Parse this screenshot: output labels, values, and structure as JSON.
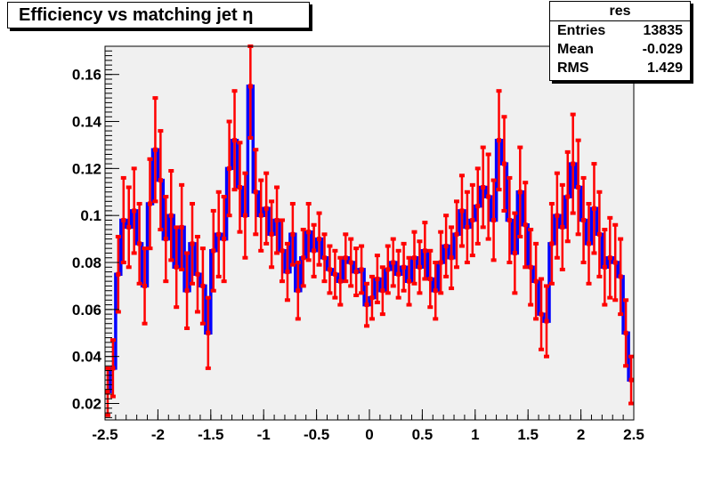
{
  "title": "Efficiency vs matching jet η",
  "stats": {
    "name": "res",
    "rows": [
      {
        "label": "Entries",
        "value": "13835"
      },
      {
        "label": "Mean",
        "value": "-0.029"
      },
      {
        "label": "RMS",
        "value": "1.429"
      }
    ]
  },
  "colors": {
    "frame_bg": "#f0f0f0",
    "histogram": "#0000ff",
    "markers": "#ff0000",
    "axis": "#000000"
  },
  "chart_data": {
    "type": "scatter",
    "title": "Efficiency vs matching jet η",
    "xlabel": "",
    "ylabel": "",
    "xlim": [
      -2.5,
      2.5
    ],
    "ylim": [
      0.013,
      0.172
    ],
    "xticks": [
      -2.5,
      -2,
      -1.5,
      -1,
      -0.5,
      0,
      0.5,
      1,
      1.5,
      2,
      2.5
    ],
    "xtick_labels": [
      "-2.5",
      "-2",
      "-1.5",
      "-1",
      "-0.5",
      "0",
      "0.5",
      "1",
      "1.5",
      "2",
      "2.5"
    ],
    "yticks": [
      0.02,
      0.04,
      0.06,
      0.08,
      0.1,
      0.12,
      0.14,
      0.16
    ],
    "ytick_labels": [
      "0.02",
      "0.04",
      "0.06",
      "0.08",
      "0.1",
      "0.12",
      "0.14",
      "0.16"
    ],
    "grid": false,
    "series": [
      {
        "representation": "histogram with error bars",
        "x": [
          -2.475,
          -2.425,
          -2.375,
          -2.325,
          -2.275,
          -2.225,
          -2.175,
          -2.125,
          -2.075,
          -2.025,
          -1.975,
          -1.925,
          -1.875,
          -1.825,
          -1.775,
          -1.725,
          -1.675,
          -1.625,
          -1.575,
          -1.525,
          -1.475,
          -1.425,
          -1.375,
          -1.325,
          -1.275,
          -1.225,
          -1.175,
          -1.125,
          -1.075,
          -1.025,
          -0.975,
          -0.925,
          -0.875,
          -0.825,
          -0.775,
          -0.725,
          -0.675,
          -0.625,
          -0.575,
          -0.525,
          -0.475,
          -0.425,
          -0.375,
          -0.325,
          -0.275,
          -0.225,
          -0.175,
          -0.125,
          -0.075,
          -0.025,
          0.025,
          0.075,
          0.125,
          0.175,
          0.225,
          0.275,
          0.325,
          0.375,
          0.425,
          0.475,
          0.525,
          0.575,
          0.625,
          0.675,
          0.725,
          0.775,
          0.825,
          0.875,
          0.925,
          0.975,
          1.025,
          1.075,
          1.125,
          1.175,
          1.225,
          1.275,
          1.325,
          1.375,
          1.425,
          1.475,
          1.525,
          1.575,
          1.625,
          1.675,
          1.725,
          1.775,
          1.825,
          1.875,
          1.925,
          1.975,
          2.025,
          2.075,
          2.125,
          2.175,
          2.225,
          2.275,
          2.325,
          2.375,
          2.425,
          2.475
        ],
        "y": [
          0.025,
          0.035,
          0.075,
          0.098,
          0.095,
          0.102,
          0.088,
          0.07,
          0.105,
          0.128,
          0.115,
          0.09,
          0.1,
          0.078,
          0.095,
          0.068,
          0.088,
          0.075,
          0.07,
          0.05,
          0.085,
          0.092,
          0.09,
          0.12,
          0.132,
          0.112,
          0.1,
          0.155,
          0.11,
          0.1,
          0.103,
          0.092,
          0.098,
          0.085,
          0.076,
          0.092,
          0.068,
          0.082,
          0.093,
          0.085,
          0.09,
          0.082,
          0.077,
          0.075,
          0.072,
          0.082,
          0.08,
          0.076,
          0.077,
          0.062,
          0.065,
          0.073,
          0.068,
          0.077,
          0.08,
          0.075,
          0.078,
          0.072,
          0.082,
          0.078,
          0.085,
          0.073,
          0.068,
          0.08,
          0.087,
          0.082,
          0.092,
          0.102,
          0.095,
          0.098,
          0.104,
          0.112,
          0.108,
          0.098,
          0.132,
          0.122,
          0.098,
          0.084,
          0.11,
          0.096,
          0.078,
          0.072,
          0.058,
          0.055,
          0.088,
          0.1,
          0.095,
          0.108,
          0.122,
          0.112,
          0.098,
          0.088,
          0.103,
          0.092,
          0.078,
          0.082,
          0.08,
          0.074,
          0.05,
          0.03
        ],
        "y_error": [
          0.01,
          0.012,
          0.016,
          0.018,
          0.017,
          0.018,
          0.017,
          0.016,
          0.019,
          0.022,
          0.021,
          0.018,
          0.019,
          0.017,
          0.018,
          0.016,
          0.017,
          0.016,
          0.016,
          0.015,
          0.017,
          0.018,
          0.018,
          0.02,
          0.021,
          0.019,
          0.018,
          0.022,
          0.018,
          0.015,
          0.015,
          0.014,
          0.014,
          0.013,
          0.012,
          0.013,
          0.012,
          0.012,
          0.012,
          0.011,
          0.011,
          0.01,
          0.01,
          0.01,
          0.01,
          0.01,
          0.01,
          0.01,
          0.01,
          0.009,
          0.009,
          0.01,
          0.01,
          0.01,
          0.01,
          0.01,
          0.01,
          0.01,
          0.011,
          0.011,
          0.012,
          0.012,
          0.012,
          0.013,
          0.013,
          0.013,
          0.014,
          0.015,
          0.015,
          0.015,
          0.016,
          0.017,
          0.018,
          0.017,
          0.021,
          0.02,
          0.018,
          0.017,
          0.019,
          0.018,
          0.016,
          0.016,
          0.015,
          0.015,
          0.017,
          0.018,
          0.018,
          0.019,
          0.021,
          0.02,
          0.018,
          0.017,
          0.019,
          0.018,
          0.016,
          0.017,
          0.016,
          0.016,
          0.014,
          0.01
        ]
      }
    ]
  }
}
